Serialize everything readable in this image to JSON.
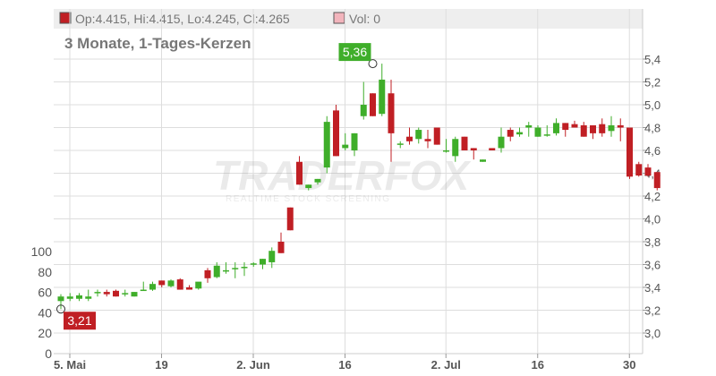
{
  "header": {
    "ohlc_text": "Op:4.415, Hi:4.415, Lo:4.245, Cl:4.265",
    "vol_text": "Vol: 0",
    "subtitle": "3 Monate, 1-Tages-Kerzen"
  },
  "watermark": {
    "brand": "TRADERFOX",
    "tagline": "REALTIME STOCK SCREENING"
  },
  "colors": {
    "up": "#3fae2a",
    "down": "#c01f24",
    "grid": "#dddddd",
    "header_bg": "#eeeeee"
  },
  "chart_data": {
    "type": "candlestick",
    "subtitle": "3 Monate, 1-Tages-Kerzen",
    "price_axis": {
      "min": 2.9,
      "max": 5.6,
      "ticks": [
        "3,0",
        "3,2",
        "3,4",
        "3,6",
        "3,8",
        "4,0",
        "4,2",
        "4,4",
        "4,6",
        "4,8",
        "5,0",
        "5,2",
        "5,4"
      ],
      "position": "right"
    },
    "volume_axis": {
      "min": 0,
      "max": 120,
      "ticks": [
        "0",
        "20",
        "40",
        "60",
        "80",
        "100"
      ],
      "position": "left"
    },
    "x_ticks": [
      {
        "label": "5. Mai",
        "index": 0
      },
      {
        "label": "19",
        "index": 10
      },
      {
        "label": "2. Jun",
        "index": 20
      },
      {
        "label": "16",
        "index": 30
      },
      {
        "label": "2. Jul",
        "index": 41
      },
      {
        "label": "16",
        "index": 51
      },
      {
        "label": "30",
        "index": 61
      }
    ],
    "annotations": [
      {
        "text": "5,36",
        "index": 34,
        "value": 5.36,
        "kind": "high"
      },
      {
        "text": "3,21",
        "index": 0,
        "value": 3.21,
        "kind": "low"
      }
    ],
    "candles": [
      [
        3.28,
        3.34,
        3.21,
        3.32
      ],
      [
        3.3,
        3.35,
        3.28,
        3.32
      ],
      [
        3.3,
        3.35,
        3.28,
        3.33
      ],
      [
        3.3,
        3.38,
        3.28,
        3.32
      ],
      [
        3.35,
        3.38,
        3.32,
        3.36
      ],
      [
        3.36,
        3.38,
        3.32,
        3.34
      ],
      [
        3.37,
        3.38,
        3.32,
        3.32
      ],
      [
        3.35,
        3.38,
        3.32,
        3.35
      ],
      [
        3.32,
        3.36,
        3.32,
        3.36
      ],
      [
        3.38,
        3.45,
        3.37,
        3.38
      ],
      [
        3.38,
        3.45,
        3.37,
        3.43
      ],
      [
        3.46,
        3.46,
        3.4,
        3.42
      ],
      [
        3.41,
        3.47,
        3.4,
        3.46
      ],
      [
        3.47,
        3.48,
        3.38,
        3.38
      ],
      [
        3.4,
        3.42,
        3.38,
        3.38
      ],
      [
        3.39,
        3.44,
        3.38,
        3.45
      ],
      [
        3.55,
        3.57,
        3.44,
        3.48
      ],
      [
        3.49,
        3.62,
        3.48,
        3.59
      ],
      [
        3.55,
        3.62,
        3.52,
        3.55
      ],
      [
        3.57,
        3.62,
        3.48,
        3.57
      ],
      [
        3.58,
        3.62,
        3.5,
        3.58
      ],
      [
        3.61,
        3.62,
        3.58,
        3.61
      ],
      [
        3.6,
        3.65,
        3.56,
        3.65
      ],
      [
        3.62,
        3.75,
        3.57,
        3.72
      ],
      [
        3.8,
        3.88,
        3.7,
        3.7
      ],
      [
        4.1,
        4.1,
        3.9,
        3.9
      ],
      [
        4.5,
        4.55,
        4.3,
        4.3
      ],
      [
        4.27,
        4.3,
        4.25,
        4.3
      ],
      [
        4.32,
        4.35,
        4.3,
        4.35
      ],
      [
        4.45,
        4.9,
        4.4,
        4.85
      ],
      [
        4.95,
        5.0,
        4.55,
        4.55
      ],
      [
        4.62,
        4.75,
        4.6,
        4.65
      ],
      [
        4.6,
        4.75,
        4.55,
        4.75
      ],
      [
        4.9,
        5.2,
        4.87,
        5.0
      ],
      [
        5.1,
        5.1,
        4.9,
        4.9
      ],
      [
        4.92,
        5.36,
        4.9,
        5.22
      ],
      [
        5.1,
        5.22,
        4.5,
        4.75
      ],
      [
        4.65,
        4.68,
        4.62,
        4.66
      ],
      [
        4.72,
        4.8,
        4.65,
        4.68
      ],
      [
        4.7,
        4.8,
        4.66,
        4.78
      ],
      [
        4.7,
        4.78,
        4.62,
        4.68
      ],
      [
        4.8,
        4.8,
        4.65,
        4.65
      ],
      [
        4.6,
        4.7,
        4.58,
        4.6
      ],
      [
        4.55,
        4.72,
        4.5,
        4.7
      ],
      [
        4.72,
        4.72,
        4.6,
        4.6
      ],
      [
        4.62,
        4.62,
        4.52,
        4.6
      ],
      [
        4.5,
        4.52,
        4.5,
        4.52
      ],
      [
        4.62,
        4.6,
        4.6,
        4.6
      ],
      [
        4.62,
        4.8,
        4.58,
        4.72
      ],
      [
        4.78,
        4.8,
        4.68,
        4.72
      ],
      [
        4.74,
        4.8,
        4.72,
        4.76
      ],
      [
        4.8,
        4.85,
        4.72,
        4.82
      ],
      [
        4.72,
        4.82,
        4.72,
        4.8
      ],
      [
        4.74,
        4.82,
        4.72,
        4.74
      ],
      [
        4.75,
        4.88,
        4.73,
        4.84
      ],
      [
        4.84,
        4.84,
        4.72,
        4.78
      ],
      [
        4.83,
        4.86,
        4.8,
        4.8
      ],
      [
        4.82,
        4.85,
        4.72,
        4.72
      ],
      [
        4.82,
        4.82,
        4.7,
        4.75
      ],
      [
        4.83,
        4.88,
        4.72,
        4.75
      ],
      [
        4.77,
        4.9,
        4.72,
        4.82
      ],
      [
        4.82,
        4.88,
        4.68,
        4.8
      ],
      [
        4.8,
        4.8,
        4.35,
        4.37
      ],
      [
        4.48,
        4.5,
        4.37,
        4.38
      ],
      [
        4.45,
        4.48,
        4.37,
        4.38
      ],
      [
        4.41,
        4.41,
        4.25,
        4.27
      ]
    ],
    "volume": [
      5,
      5,
      5,
      5,
      5,
      5,
      5,
      5,
      5,
      5,
      5,
      5,
      5,
      5,
      5,
      5,
      5,
      5,
      5,
      5,
      5,
      5,
      5,
      5,
      5,
      5,
      5,
      5,
      5,
      5,
      5,
      5,
      5,
      5,
      5,
      5,
      5,
      5,
      5,
      5,
      5,
      5,
      5,
      5,
      5,
      5,
      5,
      5,
      5,
      5,
      5,
      5,
      5,
      5,
      5,
      5,
      5,
      5,
      5,
      5,
      5,
      5,
      5,
      5,
      5,
      5
    ]
  }
}
